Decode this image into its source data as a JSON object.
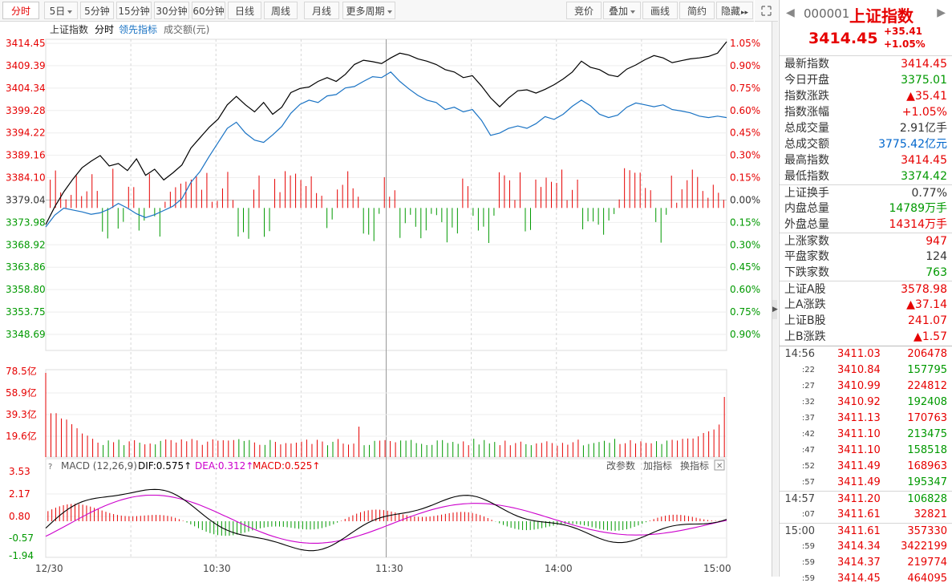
{
  "toolbar": {
    "left": [
      {
        "label": "分时",
        "active": true
      },
      {
        "label": "5日",
        "dropdown": true
      },
      {
        "label": "5分钟"
      },
      {
        "label": "15分钟"
      },
      {
        "label": "30分钟"
      },
      {
        "label": "60分钟"
      },
      {
        "label": "日线"
      },
      {
        "label": "周线"
      },
      {
        "label": "月线"
      },
      {
        "label": "更多周期",
        "dropdown": true
      }
    ],
    "right": [
      {
        "label": "竞价"
      },
      {
        "label": "叠加",
        "dropdown": true
      },
      {
        "label": "画线"
      },
      {
        "label": "简约"
      },
      {
        "label": "隐藏",
        "chevrons": "▸▸"
      }
    ],
    "icons": [
      "expand-icon"
    ]
  },
  "chart_header": {
    "items": [
      "上证指数",
      "分时",
      "领先指标",
      "成交额(元)"
    ]
  },
  "colors": {
    "up": "#e60000",
    "down": "#009900",
    "price": "#000000",
    "lead": "#1a73c4",
    "dea": "#cc00cc"
  },
  "price_axis_left": [
    "3414.45",
    "3409.39",
    "3404.34",
    "3399.28",
    "3394.22",
    "3389.16",
    "3384.10",
    "3379.04",
    "3373.98",
    "3368.92",
    "3363.86",
    "3358.80",
    "3353.75",
    "3348.69"
  ],
  "price_axis_right": [
    "1.05%",
    "0.90%",
    "0.75%",
    "0.60%",
    "0.45%",
    "0.30%",
    "0.15%",
    "0.00%",
    "0.15%",
    "0.30%",
    "0.45%",
    "0.60%",
    "0.75%",
    "0.90%"
  ],
  "volume_axis": [
    "78.5亿",
    "58.9亿",
    "39.3亿",
    "19.6亿"
  ],
  "macd": {
    "title": "MACD (12,26,9)",
    "dif": "DIF:0.575↑",
    "dea": "DEA:0.312↑",
    "macd": "MACD:0.525↑",
    "links": [
      "改参数",
      "加指标",
      "换指标"
    ],
    "axis": [
      "3.53",
      "2.17",
      "0.80",
      "-0.57",
      "-1.94"
    ]
  },
  "time_axis": [
    "12/30",
    "10:30",
    "11:30",
    "14:00",
    "15:00"
  ],
  "chart_data": {
    "type": "line",
    "prev_close": 3379.04,
    "price": [
      [
        0,
        3375.5
      ],
      [
        4,
        3379.3
      ],
      [
        8,
        3382.5
      ],
      [
        12,
        3385.2
      ],
      [
        16,
        3387.6
      ],
      [
        20,
        3389.0
      ],
      [
        24,
        3390.2
      ],
      [
        28,
        3388.0
      ],
      [
        32,
        3388.5
      ],
      [
        36,
        3387.0
      ],
      [
        40,
        3389.5
      ],
      [
        44,
        3386.0
      ],
      [
        48,
        3387.3
      ],
      [
        52,
        3385.0
      ],
      [
        56,
        3386.5
      ],
      [
        60,
        3388.2
      ],
      [
        64,
        3391.8
      ],
      [
        68,
        3394.0
      ],
      [
        72,
        3396.2
      ],
      [
        76,
        3398.0
      ],
      [
        80,
        3401.0
      ],
      [
        84,
        3402.8
      ],
      [
        88,
        3401.0
      ],
      [
        92,
        3399.5
      ],
      [
        96,
        3401.5
      ],
      [
        100,
        3399.0
      ],
      [
        104,
        3400.5
      ],
      [
        108,
        3403.6
      ],
      [
        112,
        3404.5
      ],
      [
        116,
        3404.8
      ],
      [
        120,
        3406.0
      ],
      [
        124,
        3406.8
      ],
      [
        128,
        3406.0
      ],
      [
        132,
        3407.5
      ],
      [
        136,
        3409.6
      ],
      [
        140,
        3410.5
      ],
      [
        144,
        3410.2
      ],
      [
        148,
        3409.8
      ],
      [
        152,
        3411.0
      ],
      [
        156,
        3412.0
      ],
      [
        160,
        3411.6
      ],
      [
        164,
        3410.8
      ],
      [
        168,
        3410.3
      ],
      [
        172,
        3409.6
      ],
      [
        176,
        3408.5
      ],
      [
        180,
        3408.0
      ],
      [
        184,
        3406.8
      ],
      [
        188,
        3407.2
      ],
      [
        192,
        3405.0
      ],
      [
        196,
        3402.5
      ],
      [
        200,
        3400.6
      ],
      [
        204,
        3402.5
      ],
      [
        208,
        3404.0
      ],
      [
        212,
        3404.2
      ],
      [
        216,
        3403.5
      ],
      [
        220,
        3404.3
      ],
      [
        224,
        3405.3
      ],
      [
        228,
        3406.5
      ],
      [
        232,
        3408.0
      ],
      [
        236,
        3410.3
      ],
      [
        240,
        3409.0
      ],
      [
        244,
        3408.5
      ],
      [
        248,
        3407.4
      ],
      [
        252,
        3407.0
      ],
      [
        256,
        3408.6
      ],
      [
        260,
        3409.5
      ],
      [
        264,
        3410.6
      ],
      [
        268,
        3411.5
      ],
      [
        272,
        3411.0
      ],
      [
        276,
        3410.0
      ],
      [
        280,
        3410.4
      ],
      [
        284,
        3410.8
      ],
      [
        288,
        3411.0
      ],
      [
        292,
        3411.3
      ],
      [
        296,
        3412.0
      ],
      [
        300,
        3414.45
      ]
    ],
    "lead": [
      [
        0,
        3375.0
      ],
      [
        4,
        3377.5
      ],
      [
        8,
        3379.0
      ],
      [
        12,
        3378.6
      ],
      [
        16,
        3378.2
      ],
      [
        20,
        3377.7
      ],
      [
        24,
        3378.0
      ],
      [
        28,
        3378.8
      ],
      [
        32,
        3380.0
      ],
      [
        36,
        3379.0
      ],
      [
        40,
        3377.8
      ],
      [
        44,
        3377.0
      ],
      [
        48,
        3377.6
      ],
      [
        52,
        3378.5
      ],
      [
        56,
        3379.4
      ],
      [
        60,
        3381.0
      ],
      [
        64,
        3384.5
      ],
      [
        68,
        3386.8
      ],
      [
        72,
        3390.0
      ],
      [
        76,
        3393.0
      ],
      [
        80,
        3396.0
      ],
      [
        84,
        3397.3
      ],
      [
        88,
        3395.0
      ],
      [
        92,
        3393.5
      ],
      [
        96,
        3393.0
      ],
      [
        100,
        3394.6
      ],
      [
        104,
        3396.4
      ],
      [
        108,
        3399.2
      ],
      [
        112,
        3401.1
      ],
      [
        116,
        3402.0
      ],
      [
        120,
        3401.5
      ],
      [
        124,
        3402.9
      ],
      [
        128,
        3403.2
      ],
      [
        132,
        3404.6
      ],
      [
        136,
        3404.9
      ],
      [
        140,
        3406.0
      ],
      [
        144,
        3407.0
      ],
      [
        148,
        3406.8
      ],
      [
        152,
        3408.0
      ],
      [
        156,
        3406.0
      ],
      [
        160,
        3404.4
      ],
      [
        164,
        3403.0
      ],
      [
        168,
        3402.0
      ],
      [
        172,
        3401.5
      ],
      [
        176,
        3400.0
      ],
      [
        180,
        3400.5
      ],
      [
        184,
        3399.5
      ],
      [
        188,
        3400.0
      ],
      [
        192,
        3397.7
      ],
      [
        196,
        3394.5
      ],
      [
        200,
        3395.0
      ],
      [
        204,
        3396.0
      ],
      [
        208,
        3396.5
      ],
      [
        212,
        3396.0
      ],
      [
        216,
        3397.0
      ],
      [
        220,
        3398.5
      ],
      [
        224,
        3397.9
      ],
      [
        228,
        3399.0
      ],
      [
        232,
        3400.7
      ],
      [
        236,
        3402.0
      ],
      [
        240,
        3400.8
      ],
      [
        244,
        3399.0
      ],
      [
        248,
        3398.3
      ],
      [
        252,
        3398.8
      ],
      [
        256,
        3400.5
      ],
      [
        260,
        3401.4
      ],
      [
        264,
        3401.0
      ],
      [
        268,
        3400.6
      ],
      [
        272,
        3401.0
      ],
      [
        276,
        3400.0
      ],
      [
        280,
        3399.7
      ],
      [
        284,
        3399.3
      ],
      [
        288,
        3398.6
      ],
      [
        292,
        3398.3
      ],
      [
        296,
        3398.6
      ],
      [
        300,
        3398.3
      ]
    ],
    "ylim": [
      3348.69,
      3414.45
    ],
    "xlim": [
      0,
      300
    ]
  },
  "panel": {
    "code": "000001",
    "name": "上证指数",
    "price": "3414.45",
    "change": "+35.41",
    "pct": "+1.05%",
    "rows1": [
      {
        "k": "最新指数",
        "v": "3414.45",
        "c": "red"
      },
      {
        "k": "今日开盘",
        "v": "3375.01",
        "c": "green"
      },
      {
        "k": "指数涨跌",
        "v": "▲35.41",
        "c": "red"
      },
      {
        "k": "指数涨幅",
        "v": "+1.05%",
        "c": "red"
      },
      {
        "k": "总成交量",
        "v": "2.91亿手",
        "c": "black"
      },
      {
        "k": "总成交额",
        "v": "3775.42亿元",
        "c": "blue"
      },
      {
        "k": "最高指数",
        "v": "3414.45",
        "c": "red"
      },
      {
        "k": "最低指数",
        "v": "3374.42",
        "c": "green"
      }
    ],
    "rows2": [
      {
        "k": "上证换手",
        "v": "0.77%",
        "c": "black"
      },
      {
        "k": "内盘总量",
        "v": "14789万手",
        "c": "green"
      },
      {
        "k": "外盘总量",
        "v": "14314万手",
        "c": "red"
      }
    ],
    "rows3": [
      {
        "k": "上涨家数",
        "v": "947",
        "c": "red"
      },
      {
        "k": "平盘家数",
        "v": "124",
        "c": "black"
      },
      {
        "k": "下跌家数",
        "v": "763",
        "c": "green"
      }
    ],
    "rows4": [
      {
        "k": "上证A股",
        "v": "3578.98",
        "c": "red"
      },
      {
        "k": "上A涨跌",
        "v": "▲37.14",
        "c": "red"
      },
      {
        "k": "上证B股",
        "v": "241.07",
        "c": "red"
      },
      {
        "k": "上B涨跌",
        "v": "▲1.57",
        "c": "red"
      }
    ],
    "ticks": [
      {
        "t": "14:56",
        "p": "3411.03",
        "q": "206478",
        "qc": "red",
        "sep": true
      },
      {
        "t": ":22",
        "p": "3410.84",
        "q": "157795",
        "qc": "green"
      },
      {
        "t": ":27",
        "p": "3410.99",
        "q": "224812",
        "qc": "red"
      },
      {
        "t": ":32",
        "p": "3410.92",
        "q": "192408",
        "qc": "green"
      },
      {
        "t": ":37",
        "p": "3411.13",
        "q": "170763",
        "qc": "red"
      },
      {
        "t": ":42",
        "p": "3411.10",
        "q": "213475",
        "qc": "green"
      },
      {
        "t": ":47",
        "p": "3411.10",
        "q": "158518",
        "qc": "green"
      },
      {
        "t": ":52",
        "p": "3411.49",
        "q": "168963",
        "qc": "red"
      },
      {
        "t": ":57",
        "p": "3411.49",
        "q": "195347",
        "qc": "green"
      },
      {
        "t": "14:57",
        "p": "3411.20",
        "q": "106828",
        "qc": "green",
        "sep": true
      },
      {
        "t": ":07",
        "p": "3411.61",
        "q": "32821",
        "qc": "red"
      },
      {
        "t": "15:00",
        "p": "3411.61",
        "q": "357330",
        "qc": "red",
        "sep": true
      },
      {
        "t": ":59",
        "p": "3414.34",
        "q": "3422199",
        "qc": "red"
      },
      {
        "t": ":59",
        "p": "3414.37",
        "q": "219774",
        "qc": "red"
      },
      {
        "t": ":59",
        "p": "3414.45",
        "q": "464095",
        "qc": "red"
      }
    ]
  }
}
